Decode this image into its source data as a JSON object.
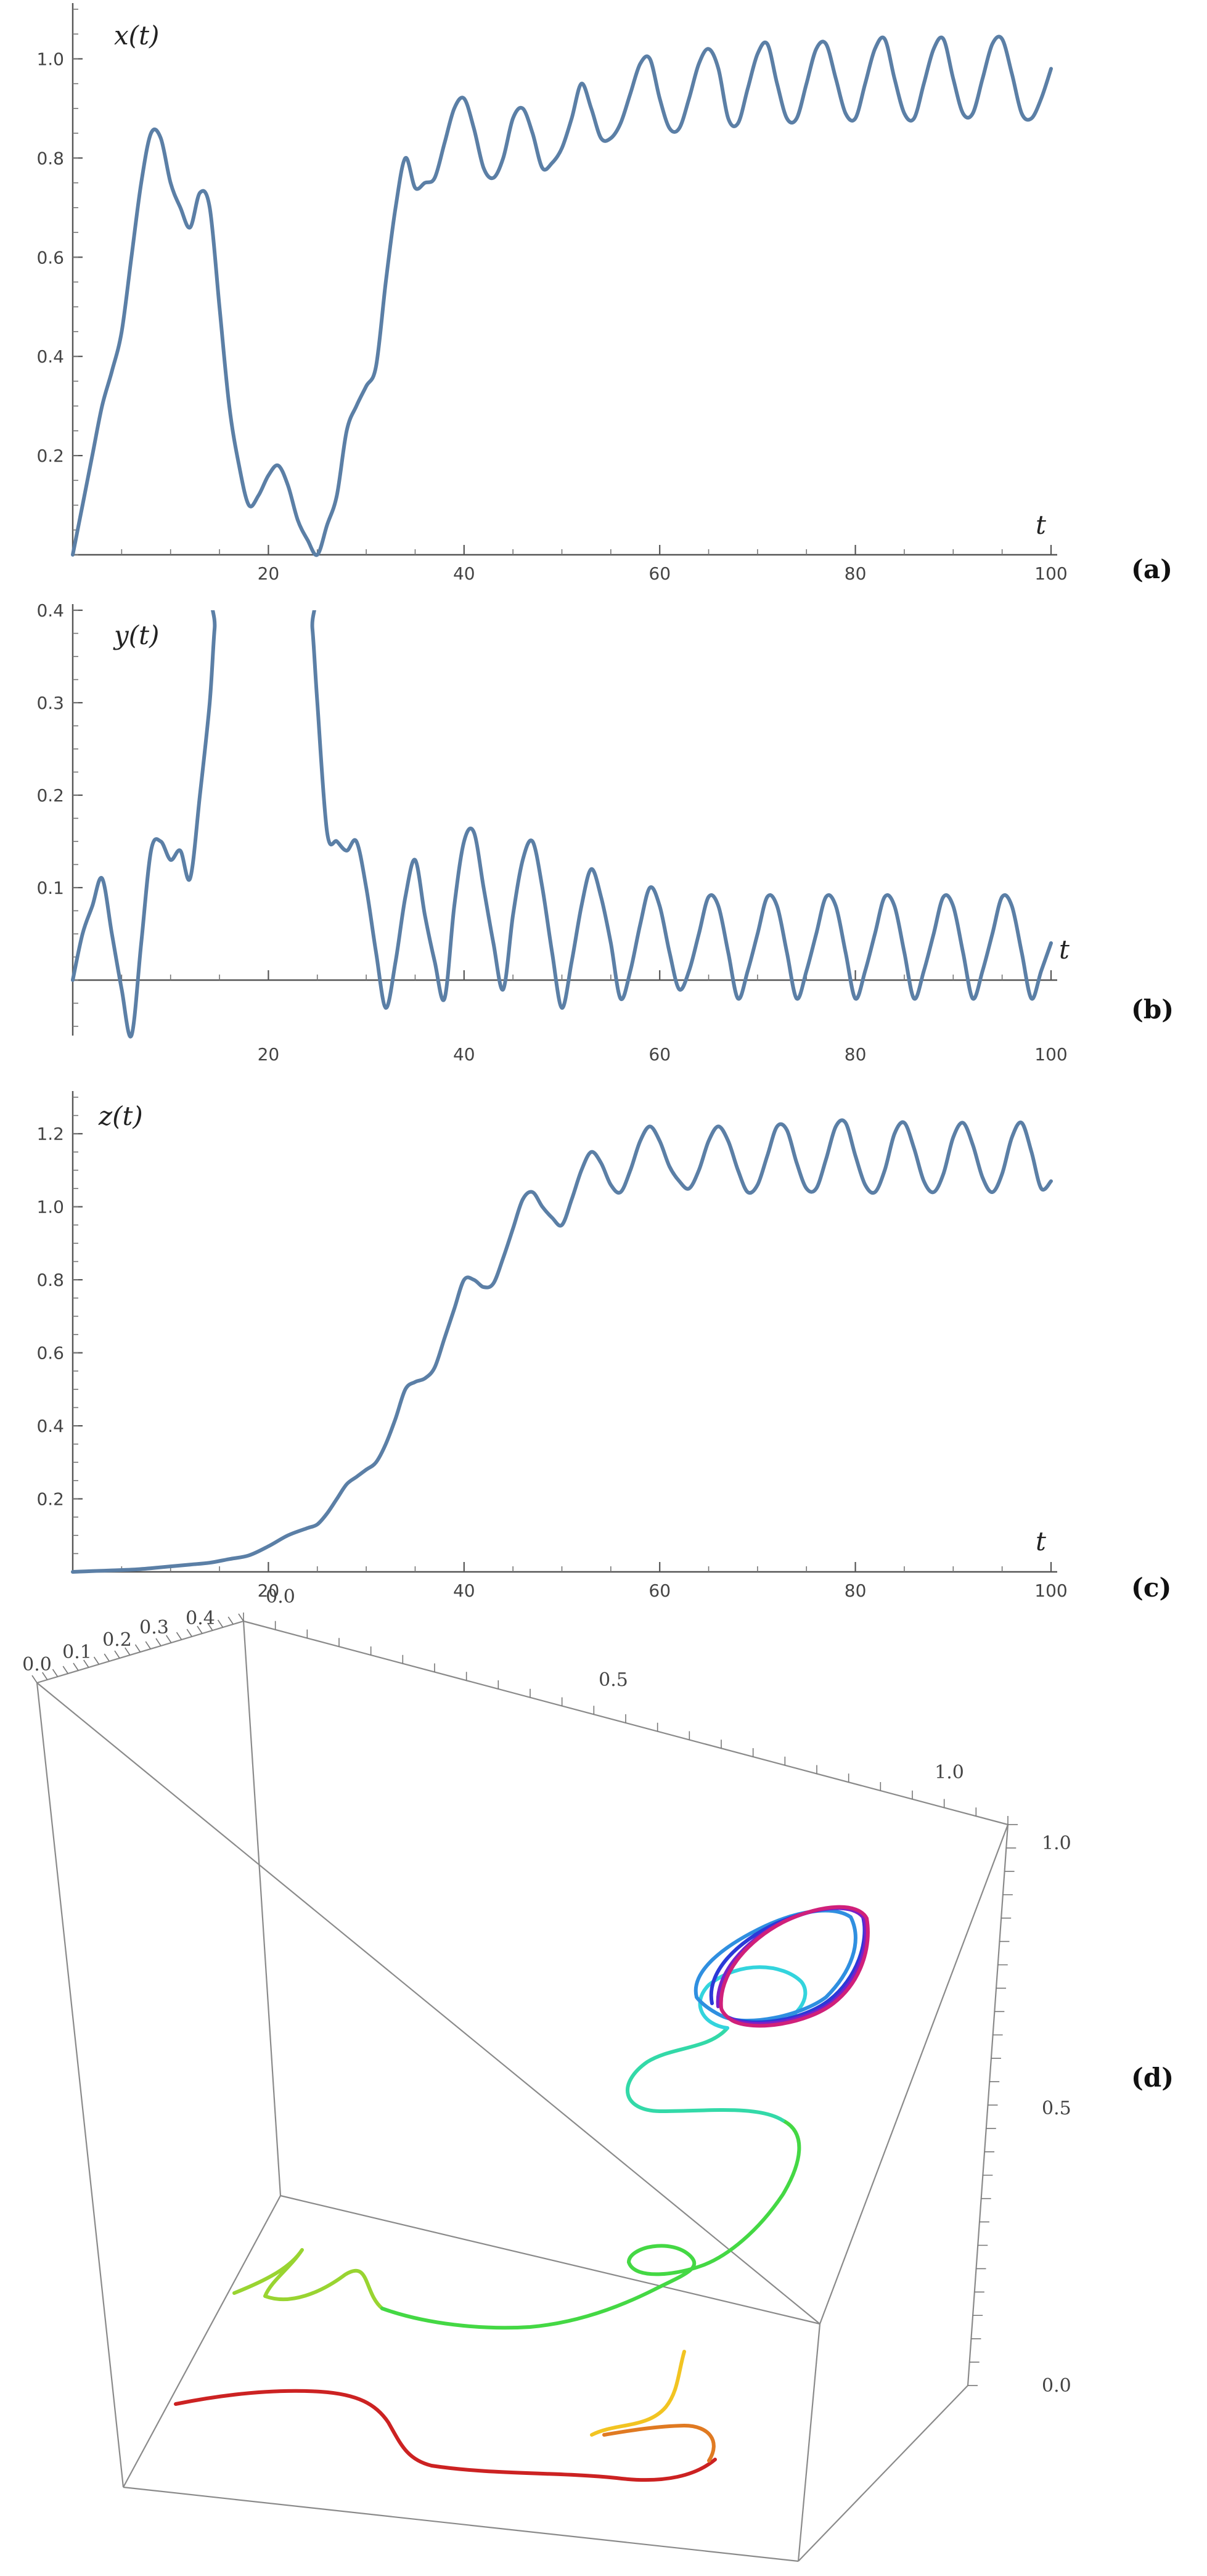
{
  "chart_data": [
    {
      "panel": "(a)",
      "type": "line",
      "ylabel": "x(t)",
      "xlabel": "t",
      "xlim": [
        0,
        100
      ],
      "ylim": [
        0,
        1.1
      ],
      "xticks": [
        "20",
        "40",
        "60",
        "80",
        "100"
      ],
      "yticks": [
        "0.2",
        "0.4",
        "0.6",
        "0.8",
        "1.0"
      ],
      "series": [
        {
          "x": [
            0,
            1,
            2,
            3,
            4,
            5,
            6,
            7,
            8,
            9,
            10,
            11,
            12,
            13,
            14,
            15,
            16,
            17,
            18,
            19,
            20,
            21,
            22,
            23,
            24,
            25,
            26,
            27,
            28,
            29,
            30,
            31,
            32,
            33,
            34,
            35,
            36,
            37,
            38,
            39,
            40,
            41,
            42,
            43,
            44,
            45,
            46,
            47,
            48,
            49,
            50,
            51,
            52,
            53,
            54,
            55,
            56,
            57,
            58,
            59,
            60,
            61,
            62,
            63,
            64,
            65,
            66,
            67,
            68,
            69,
            70,
            71,
            72,
            73,
            74,
            75,
            76,
            77,
            78,
            79,
            80,
            81,
            82,
            83,
            84,
            85,
            86,
            87,
            88,
            89,
            90,
            91,
            92,
            93,
            94,
            95,
            96,
            97,
            98,
            99,
            100
          ],
          "y": [
            0,
            0.1,
            0.2,
            0.3,
            0.37,
            0.45,
            0.6,
            0.75,
            0.85,
            0.84,
            0.75,
            0.7,
            0.66,
            0.73,
            0.7,
            0.5,
            0.3,
            0.18,
            0.1,
            0.12,
            0.16,
            0.18,
            0.14,
            0.07,
            0.03,
            0,
            0.06,
            0.12,
            0.25,
            0.3,
            0.34,
            0.38,
            0.55,
            0.7,
            0.8,
            0.74,
            0.75,
            0.76,
            0.83,
            0.9,
            0.92,
            0.86,
            0.78,
            0.76,
            0.8,
            0.88,
            0.9,
            0.85,
            0.78,
            0.79,
            0.82,
            0.88,
            0.95,
            0.9,
            0.84,
            0.84,
            0.87,
            0.93,
            0.99,
            1.0,
            0.92,
            0.86,
            0.86,
            0.92,
            0.99,
            1.02,
            0.98,
            0.88,
            0.87,
            0.94,
            1.01,
            1.03,
            0.95,
            0.88,
            0.88,
            0.95,
            1.02,
            1.03,
            0.96,
            0.89,
            0.88,
            0.95,
            1.02,
            1.04,
            0.96,
            0.89,
            0.88,
            0.95,
            1.02,
            1.04,
            0.96,
            0.89,
            0.89,
            0.96,
            1.03,
            1.04,
            0.97,
            0.89,
            0.88,
            0.92,
            0.98
          ]
        }
      ]
    },
    {
      "panel": "(b)",
      "type": "line",
      "ylabel": "y(t)",
      "xlabel": "t",
      "xlim": [
        0,
        100
      ],
      "ylim": [
        -0.06,
        0.4
      ],
      "xticks": [
        "20",
        "40",
        "60",
        "80",
        "100"
      ],
      "yticks": [
        "0.1",
        "0.2",
        "0.3",
        "0.4"
      ],
      "series": [
        {
          "x": [
            0,
            1,
            2,
            3,
            4,
            5,
            6,
            7,
            8,
            9,
            10,
            11,
            12,
            13,
            14,
            14.5,
            15,
            24,
            24.5,
            25,
            26,
            27,
            28,
            29,
            30,
            31,
            32,
            33,
            34,
            35,
            36,
            37,
            38,
            39,
            40,
            41,
            42,
            43,
            44,
            45,
            46,
            47,
            48,
            49,
            50,
            51,
            52,
            53,
            54,
            55,
            56,
            57,
            58,
            59,
            60,
            61,
            62,
            63,
            64,
            65,
            66,
            67,
            68,
            69,
            70,
            71,
            72,
            73,
            74,
            75,
            76,
            77,
            78,
            79,
            80,
            81,
            82,
            83,
            84,
            85,
            86,
            87,
            88,
            89,
            90,
            91,
            92,
            93,
            94,
            95,
            96,
            97,
            98,
            99,
            100
          ],
          "y": [
            0,
            0.05,
            0.08,
            0.11,
            0.05,
            -0.01,
            -0.06,
            0.04,
            0.14,
            0.15,
            0.13,
            0.14,
            0.11,
            0.2,
            0.3,
            0.38,
            0.42,
            0.42,
            0.38,
            0.3,
            0.16,
            0.15,
            0.14,
            0.15,
            0.1,
            0.03,
            -0.03,
            0.02,
            0.09,
            0.13,
            0.07,
            0.02,
            -0.02,
            0.08,
            0.15,
            0.16,
            0.1,
            0.04,
            -0.01,
            0.07,
            0.13,
            0.15,
            0.1,
            0.03,
            -0.03,
            0.02,
            0.08,
            0.12,
            0.09,
            0.04,
            -0.02,
            0.01,
            0.06,
            0.1,
            0.08,
            0.03,
            -0.01,
            0.01,
            0.05,
            0.09,
            0.08,
            0.03,
            -0.02,
            0.01,
            0.05,
            0.09,
            0.08,
            0.03,
            -0.02,
            0.01,
            0.05,
            0.09,
            0.08,
            0.03,
            -0.02,
            0.01,
            0.05,
            0.09,
            0.08,
            0.03,
            -0.02,
            0.01,
            0.05,
            0.09,
            0.08,
            0.03,
            -0.02,
            0.01,
            0.05,
            0.09,
            0.08,
            0.03,
            -0.02,
            0.01,
            0.04
          ]
        }
      ]
    },
    {
      "panel": "(c)",
      "type": "line",
      "ylabel": "z(t)",
      "xlabel": "t",
      "xlim": [
        0,
        100
      ],
      "ylim": [
        0,
        1.3
      ],
      "xticks": [
        "20",
        "40",
        "60",
        "80",
        "100"
      ],
      "yticks": [
        "0.2",
        "0.4",
        "0.6",
        "0.8",
        "1.0",
        "1.2"
      ],
      "series": [
        {
          "x": [
            0,
            2,
            4,
            6,
            8,
            10,
            12,
            14,
            16,
            18,
            20,
            22,
            24,
            25,
            26,
            27,
            28,
            29,
            30,
            31,
            32,
            33,
            34,
            35,
            36,
            37,
            38,
            39,
            40,
            41,
            42,
            43,
            44,
            45,
            46,
            47,
            48,
            49,
            50,
            51,
            52,
            53,
            54,
            55,
            56,
            57,
            58,
            59,
            60,
            61,
            62,
            63,
            64,
            65,
            66,
            67,
            68,
            69,
            70,
            71,
            72,
            73,
            74,
            75,
            76,
            77,
            78,
            79,
            80,
            81,
            82,
            83,
            84,
            85,
            86,
            87,
            88,
            89,
            90,
            91,
            92,
            93,
            94,
            95,
            96,
            97,
            98,
            99,
            100
          ],
          "y": [
            0,
            0.002,
            0.004,
            0.006,
            0.01,
            0.015,
            0.02,
            0.025,
            0.035,
            0.045,
            0.07,
            0.1,
            0.12,
            0.13,
            0.16,
            0.2,
            0.24,
            0.26,
            0.28,
            0.3,
            0.35,
            0.42,
            0.5,
            0.52,
            0.53,
            0.56,
            0.64,
            0.72,
            0.8,
            0.8,
            0.78,
            0.79,
            0.86,
            0.94,
            1.02,
            1.04,
            1.0,
            0.97,
            0.95,
            1.02,
            1.1,
            1.15,
            1.12,
            1.06,
            1.04,
            1.1,
            1.18,
            1.22,
            1.18,
            1.11,
            1.07,
            1.05,
            1.1,
            1.18,
            1.22,
            1.18,
            1.1,
            1.04,
            1.06,
            1.14,
            1.22,
            1.21,
            1.12,
            1.05,
            1.05,
            1.13,
            1.22,
            1.23,
            1.14,
            1.06,
            1.04,
            1.1,
            1.2,
            1.23,
            1.16,
            1.07,
            1.04,
            1.09,
            1.19,
            1.23,
            1.17,
            1.08,
            1.04,
            1.09,
            1.19,
            1.23,
            1.15,
            1.05,
            1.07
          ]
        }
      ]
    },
    {
      "panel": "(d)",
      "type": "line3d",
      "x_ticks": [
        "0.0",
        "0.5",
        "1.0"
      ],
      "y_ticks": [
        "0.0",
        "0.1",
        "0.2",
        "0.3",
        "0.4"
      ],
      "z_ticks": [
        "0.0",
        "0.5",
        "1.0"
      ],
      "colors": [
        "#cc2222",
        "#e07a22",
        "#f2c422",
        "#99d431",
        "#44d844",
        "#33d9a8",
        "#33d4dd",
        "#2f8fe0",
        "#2a3ad8",
        "#7a20c8",
        "#d0207a"
      ]
    }
  ]
}
